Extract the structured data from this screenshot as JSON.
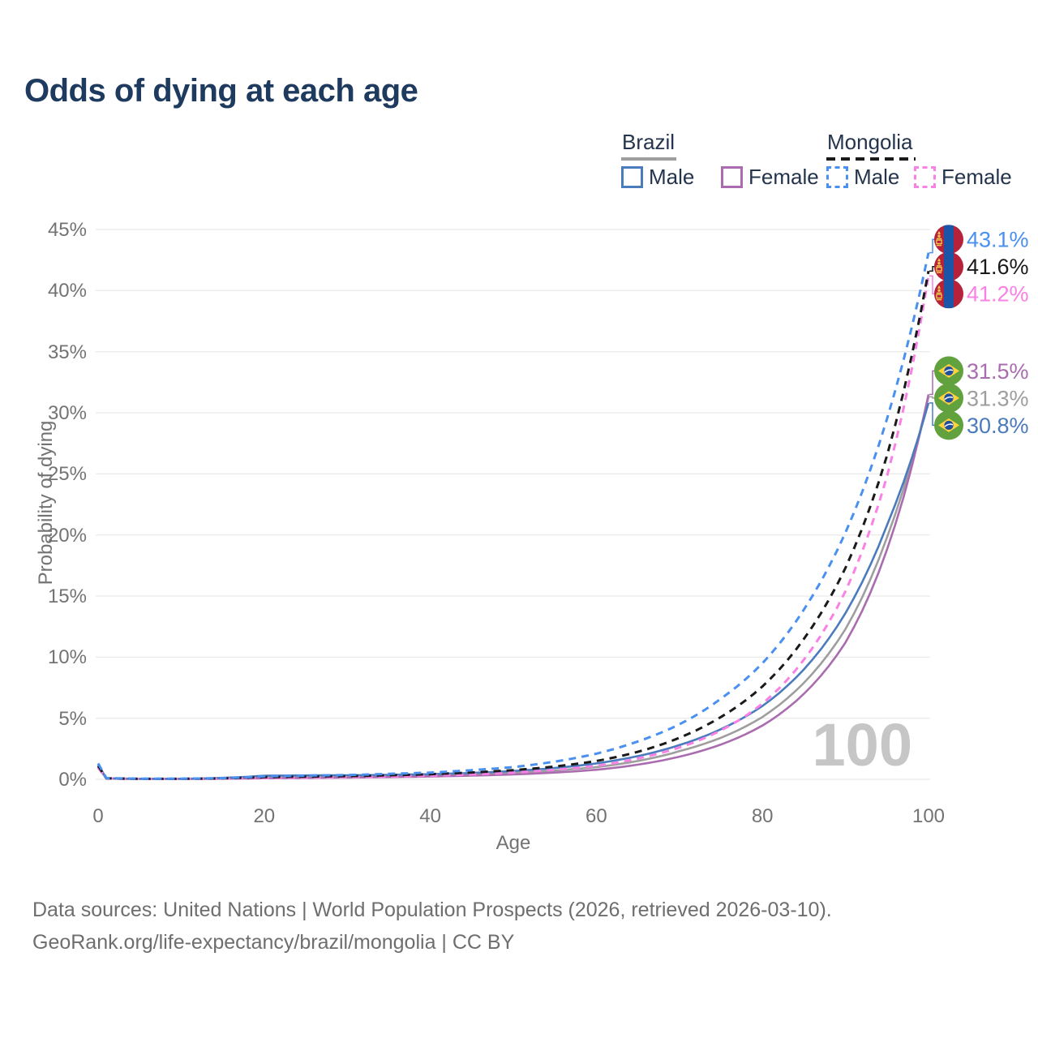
{
  "title": "Odds of dying at each age",
  "legend": {
    "groups": [
      {
        "name": "Brazil",
        "line_style": "solid",
        "underline_color": "#9e9e9e",
        "items": [
          {
            "label": "Male",
            "color": "#4a7bbd"
          },
          {
            "label": "Female",
            "color": "#aa6caf"
          }
        ]
      },
      {
        "name": "Mongolia",
        "line_style": "dashed",
        "underline_color": "#1a1a1a",
        "items": [
          {
            "label": "Male",
            "color": "#4a90f0"
          },
          {
            "label": "Female",
            "color": "#f980e4"
          }
        ]
      }
    ]
  },
  "watermark": "100",
  "footer": {
    "line1": "Data sources: United Nations | World Population Prospects (2026, retrieved 2026-03-10).",
    "line2": "GeoRank.org/life-expectancy/brazil/mongolia | CC BY"
  },
  "chart_data": {
    "type": "line",
    "title": "Odds of dying at each age",
    "xlabel": "Age",
    "ylabel": "Probability of dying",
    "xlim": [
      0,
      100
    ],
    "ylim": [
      0,
      45
    ],
    "grid": "horizontal",
    "x_ticks": [
      "0",
      "20",
      "40",
      "60",
      "80",
      "100"
    ],
    "x_tick_values": [
      0,
      20,
      40,
      60,
      80,
      100
    ],
    "y_ticks": [
      "0%",
      "5%",
      "10%",
      "15%",
      "20%",
      "25%",
      "30%",
      "35%",
      "40%",
      "45%"
    ],
    "y_tick_values": [
      0,
      5,
      10,
      15,
      20,
      25,
      30,
      35,
      40,
      45
    ],
    "x": [
      0,
      1,
      5,
      10,
      15,
      20,
      25,
      30,
      35,
      40,
      45,
      50,
      55,
      60,
      65,
      70,
      75,
      80,
      85,
      90,
      95,
      100
    ],
    "series": [
      {
        "name": "Brazil Total",
        "country": "Brazil",
        "sex": "Both",
        "flag": "brazil",
        "color": "#9e9e9e",
        "dashed": false,
        "end_label": "31.3%",
        "values": [
          1.1,
          0.07,
          0.03,
          0.03,
          0.08,
          0.2,
          0.22,
          0.24,
          0.27,
          0.32,
          0.4,
          0.53,
          0.72,
          1.0,
          1.5,
          2.3,
          3.4,
          5.1,
          7.9,
          12.3,
          19.8,
          31.3
        ]
      },
      {
        "name": "Brazil Female",
        "country": "Brazil",
        "sex": "Female",
        "flag": "brazil",
        "color": "#aa6caf",
        "dashed": false,
        "end_label": "31.5%",
        "values": [
          1.0,
          0.06,
          0.03,
          0.03,
          0.05,
          0.09,
          0.11,
          0.14,
          0.18,
          0.23,
          0.3,
          0.4,
          0.55,
          0.78,
          1.2,
          1.85,
          2.85,
          4.4,
          7.0,
          11.2,
          18.8,
          31.5
        ]
      },
      {
        "name": "Brazil Male",
        "country": "Brazil",
        "sex": "Male",
        "flag": "brazil",
        "color": "#4a7bbd",
        "dashed": false,
        "end_label": "30.8%",
        "values": [
          1.2,
          0.08,
          0.04,
          0.04,
          0.12,
          0.3,
          0.32,
          0.33,
          0.36,
          0.42,
          0.52,
          0.68,
          0.92,
          1.3,
          1.9,
          2.8,
          4.1,
          6.0,
          9.0,
          13.6,
          20.8,
          30.8
        ]
      },
      {
        "name": "Mongolia Female",
        "country": "Mongolia",
        "sex": "Female",
        "flag": "mongolia",
        "color": "#f980e4",
        "dashed": true,
        "end_label": "41.2%",
        "values": [
          0.95,
          0.07,
          0.03,
          0.03,
          0.06,
          0.1,
          0.13,
          0.17,
          0.22,
          0.3,
          0.4,
          0.55,
          0.78,
          1.1,
          1.7,
          2.6,
          4.0,
          6.2,
          9.8,
          15.4,
          24.8,
          41.2
        ]
      },
      {
        "name": "Mongolia Total",
        "country": "Mongolia",
        "sex": "Both",
        "flag": "mongolia",
        "color": "#1a1a1a",
        "dashed": true,
        "end_label": "41.6%",
        "values": [
          1.1,
          0.08,
          0.04,
          0.04,
          0.08,
          0.18,
          0.22,
          0.26,
          0.33,
          0.42,
          0.56,
          0.75,
          1.05,
          1.5,
          2.25,
          3.4,
          5.1,
          7.6,
          11.5,
          17.3,
          26.5,
          41.6
        ]
      },
      {
        "name": "Mongolia Male",
        "country": "Mongolia",
        "sex": "Male",
        "flag": "mongolia",
        "color": "#4a90f0",
        "dashed": true,
        "end_label": "43.1%",
        "values": [
          1.3,
          0.1,
          0.05,
          0.05,
          0.1,
          0.25,
          0.3,
          0.35,
          0.45,
          0.55,
          0.75,
          1.0,
          1.45,
          2.1,
          3.1,
          4.5,
          6.6,
          9.5,
          13.9,
          20.2,
          29.5,
          43.1
        ]
      }
    ]
  }
}
